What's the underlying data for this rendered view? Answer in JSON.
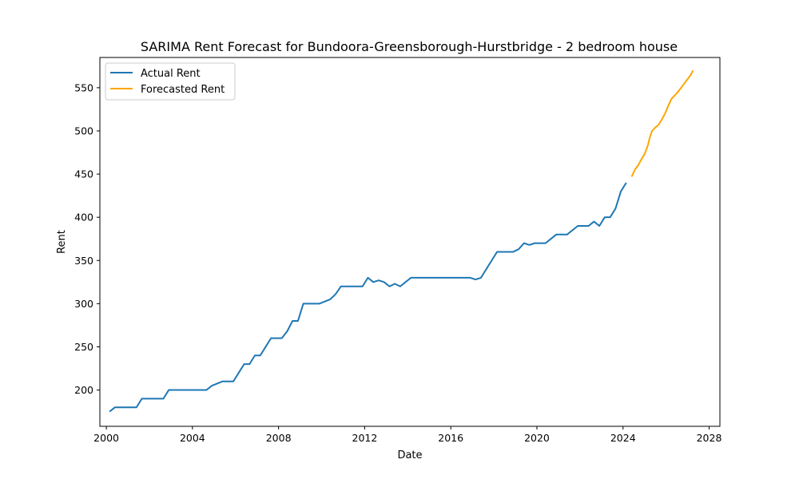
{
  "chart_data": {
    "type": "line",
    "title": "SARIMA Rent Forecast for Bundoora-Greensborough-Hurstbridge - 2 bedroom house",
    "xlabel": "Date",
    "ylabel": "Rent",
    "xlim": [
      1999.7,
      2028.5
    ],
    "ylim": [
      158,
      585
    ],
    "x_ticks": [
      2000,
      2004,
      2008,
      2012,
      2016,
      2020,
      2024,
      2028
    ],
    "y_ticks": [
      200,
      250,
      300,
      350,
      400,
      450,
      500,
      550
    ],
    "grid": false,
    "legend_position": "top-left",
    "series": [
      {
        "name": "Actual Rent",
        "color": "#1f77b4",
        "x": [
          2000.15,
          2000.4,
          2000.65,
          2001.0,
          2001.4,
          2001.65,
          2001.9,
          2002.4,
          2002.65,
          2002.9,
          2003.15,
          2003.65,
          2004.15,
          2004.65,
          2004.9,
          2005.4,
          2005.65,
          2005.9,
          2006.15,
          2006.4,
          2006.65,
          2006.9,
          2007.15,
          2007.4,
          2007.65,
          2007.9,
          2008.15,
          2008.4,
          2008.65,
          2008.9,
          2009.15,
          2009.4,
          2009.65,
          2009.9,
          2010.4,
          2010.65,
          2010.9,
          2011.15,
          2011.4,
          2011.65,
          2011.9,
          2012.15,
          2012.4,
          2012.65,
          2012.9,
          2013.15,
          2013.4,
          2013.65,
          2013.9,
          2014.15,
          2014.4,
          2014.65,
          2014.9,
          2015.4,
          2015.9,
          2016.4,
          2016.9,
          2017.15,
          2017.4,
          2017.65,
          2017.9,
          2018.15,
          2018.4,
          2018.9,
          2019.15,
          2019.4,
          2019.65,
          2019.9,
          2020.15,
          2020.4,
          2020.65,
          2020.9,
          2021.15,
          2021.4,
          2021.65,
          2021.9,
          2022.15,
          2022.4,
          2022.65,
          2022.9,
          2023.15,
          2023.4,
          2023.65,
          2023.9,
          2024.15
        ],
        "values": [
          175,
          180,
          180,
          180,
          180,
          190,
          190,
          190,
          190,
          200,
          200,
          200,
          200,
          200,
          205,
          210,
          210,
          210,
          220,
          230,
          230,
          240,
          240,
          250,
          260,
          260,
          260,
          268,
          280,
          280,
          300,
          300,
          300,
          300,
          305,
          311,
          320,
          320,
          320,
          320,
          320,
          330,
          325,
          327,
          325,
          320,
          323,
          320,
          325,
          330,
          330,
          330,
          330,
          330,
          330,
          330,
          330,
          328,
          330,
          340,
          350,
          360,
          360,
          360,
          363,
          370,
          368,
          370,
          370,
          370,
          375,
          380,
          380,
          380,
          385,
          390,
          390,
          390,
          395,
          390,
          400,
          400,
          410,
          430,
          440
        ]
      },
      {
        "name": "Forecasted Rent",
        "color": "#ffa500",
        "x": [
          2024.4,
          2024.55,
          2024.7,
          2024.85,
          2025.0,
          2025.15,
          2025.25,
          2025.35,
          2025.5,
          2025.65,
          2025.8,
          2025.95,
          2026.1,
          2026.25,
          2026.4,
          2026.55,
          2026.7,
          2026.85,
          2027.0,
          2027.15,
          2027.25
        ],
        "values": [
          447,
          455,
          460,
          467,
          473,
          483,
          493,
          500,
          504,
          507,
          513,
          520,
          529,
          537,
          541,
          545,
          550,
          555,
          560,
          565,
          570
        ]
      }
    ]
  }
}
